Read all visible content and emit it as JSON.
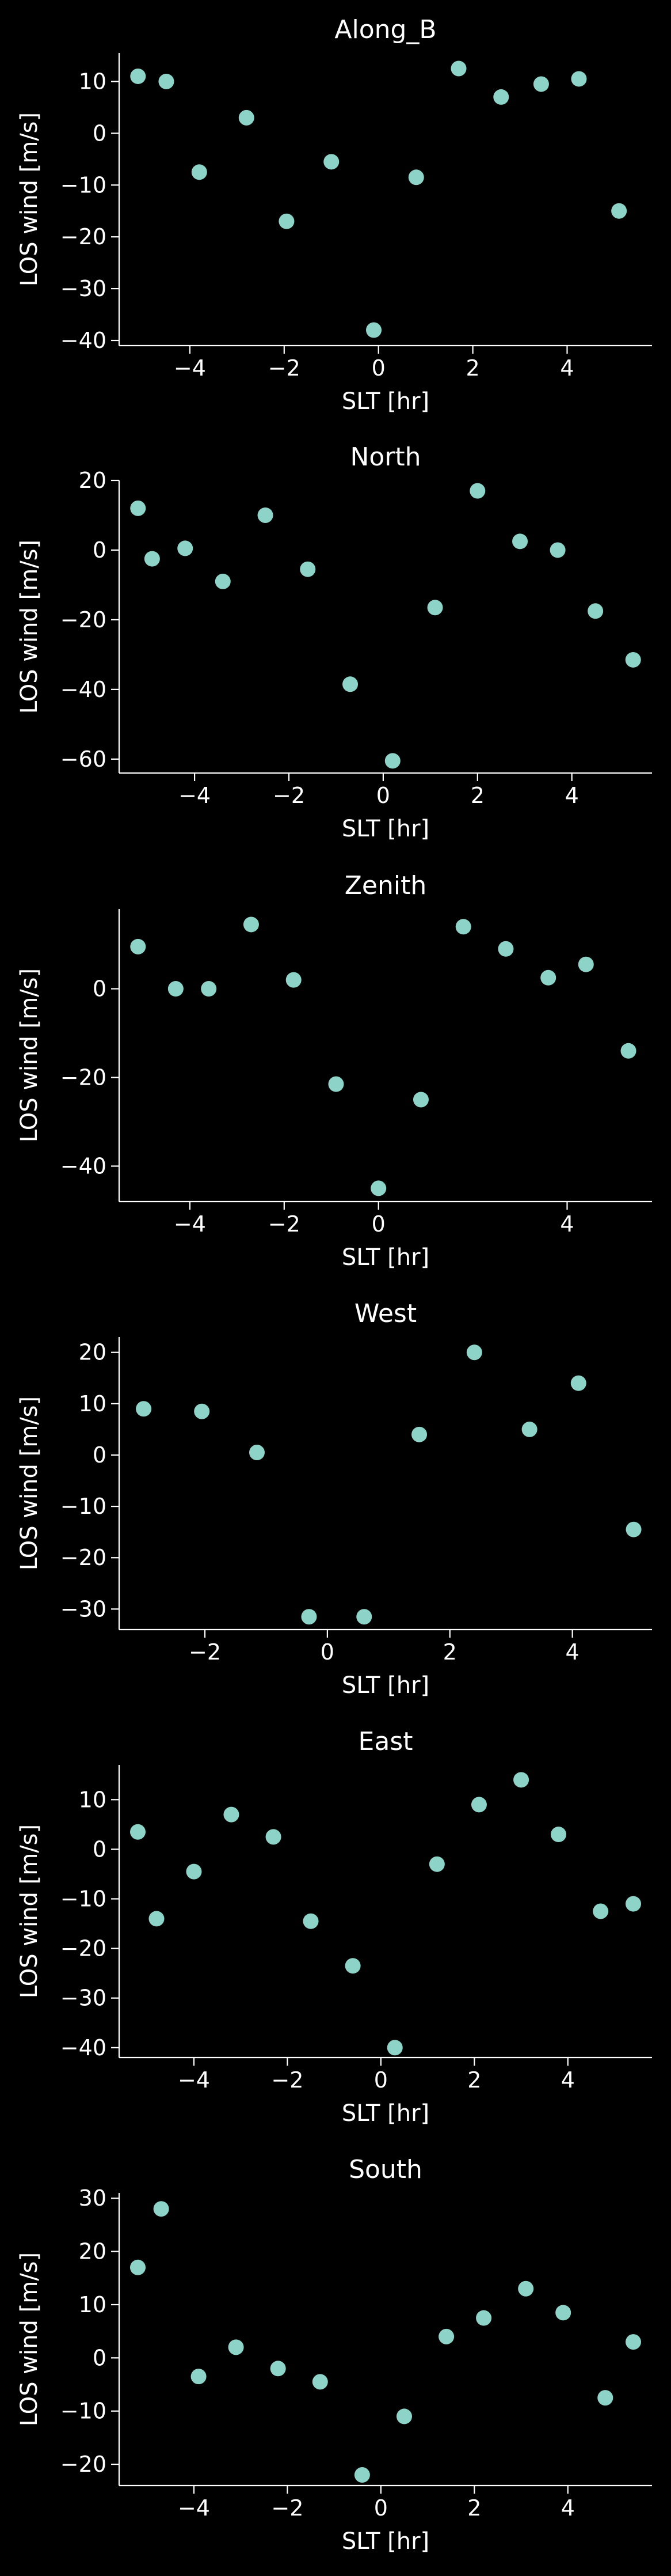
{
  "theme": {
    "background": "#000000",
    "axis_color": "#ffffff",
    "text_color": "#ffffff",
    "marker_color": "#8dd3c7"
  },
  "chart_data": [
    {
      "type": "scatter",
      "title": "Along_B",
      "xlabel": "SLT [hr]",
      "ylabel": "LOS wind [m/s]",
      "xlim": [
        -5.5,
        5.8
      ],
      "ylim": [
        -41,
        15.5
      ],
      "xticks": [
        -4,
        -2,
        0,
        2,
        4
      ],
      "yticks": [
        -40,
        -30,
        -20,
        -10,
        0,
        10
      ],
      "x": [
        -5.1,
        -4.5,
        -3.8,
        -2.8,
        -1.95,
        -1.0,
        -0.1,
        0.8,
        1.7,
        2.6,
        3.45,
        4.25,
        5.1
      ],
      "y": [
        11,
        10,
        -7.5,
        3,
        -17,
        -5.5,
        -38,
        -8.5,
        12.5,
        7,
        9.5,
        10.5,
        -15
      ]
    },
    {
      "type": "scatter",
      "title": "North",
      "xlabel": "SLT [hr]",
      "ylabel": "LOS wind [m/s]",
      "xlim": [
        -5.6,
        5.7
      ],
      "ylim": [
        -64,
        20
      ],
      "xticks": [
        -4,
        -2,
        0,
        2,
        4
      ],
      "yticks": [
        -60,
        -40,
        -20,
        0,
        20
      ],
      "x": [
        -5.2,
        -4.9,
        -4.2,
        -3.4,
        -2.5,
        -1.6,
        -0.7,
        0.2,
        1.1,
        2.0,
        2.9,
        3.7,
        4.5,
        5.3
      ],
      "y": [
        12,
        -2.5,
        0.5,
        -9,
        10,
        -5.5,
        -38.5,
        -60.5,
        -16.5,
        17,
        2.5,
        0,
        -17.5,
        -31.5
      ]
    },
    {
      "type": "scatter",
      "title": "Zenith",
      "xlabel": "SLT [hr]",
      "ylabel": "LOS wind [m/s]",
      "xlim": [
        -5.5,
        5.8
      ],
      "ylim": [
        -48,
        18
      ],
      "xticks": [
        -4,
        -2,
        0,
        4
      ],
      "yticks": [
        -40,
        -20,
        0
      ],
      "x": [
        -5.1,
        -4.3,
        -3.6,
        -2.7,
        -1.8,
        -0.9,
        0.0,
        0.9,
        1.8,
        2.7,
        3.6,
        4.4,
        5.3
      ],
      "y": [
        9.5,
        0,
        0,
        14.5,
        2,
        -21.5,
        -45,
        -25,
        14,
        9,
        2.5,
        5.5,
        -14
      ]
    },
    {
      "type": "scatter",
      "title": "West",
      "xlabel": "SLT [hr]",
      "ylabel": "LOS wind [m/s]",
      "xlim": [
        -3.4,
        5.3
      ],
      "ylim": [
        -34,
        23
      ],
      "xticks": [
        -2,
        0,
        2,
        4
      ],
      "yticks": [
        -30,
        -20,
        -10,
        0,
        10,
        20
      ],
      "x": [
        -3.0,
        -2.05,
        -1.15,
        -0.3,
        0.6,
        1.5,
        2.4,
        3.3,
        4.1,
        5.0
      ],
      "y": [
        9,
        8.5,
        0.5,
        -31.5,
        -31.5,
        4,
        20,
        5,
        14,
        -14.5
      ]
    },
    {
      "type": "scatter",
      "title": "East",
      "xlabel": "SLT [hr]",
      "ylabel": "LOS wind [m/s]",
      "xlim": [
        -5.6,
        5.8
      ],
      "ylim": [
        -42,
        17
      ],
      "xticks": [
        -4,
        -2,
        0,
        2,
        4
      ],
      "yticks": [
        -40,
        -30,
        -20,
        -10,
        0,
        10
      ],
      "x": [
        -5.2,
        -4.8,
        -4.0,
        -3.2,
        -2.3,
        -1.5,
        -0.6,
        0.3,
        1.2,
        2.1,
        3.0,
        3.8,
        4.7,
        5.4
      ],
      "y": [
        3.5,
        -14,
        -4.5,
        7,
        2.5,
        -14.5,
        -23.5,
        -40,
        -3,
        9,
        14,
        3,
        -12.5,
        -11
      ]
    },
    {
      "type": "scatter",
      "title": "South",
      "xlabel": "SLT [hr]",
      "ylabel": "LOS wind [m/s]",
      "xlim": [
        -5.6,
        5.8
      ],
      "ylim": [
        -24,
        31
      ],
      "xticks": [
        -4,
        -2,
        0,
        2,
        4
      ],
      "yticks": [
        -20,
        -10,
        0,
        10,
        20,
        30
      ],
      "x": [
        -5.2,
        -4.7,
        -3.9,
        -3.1,
        -2.2,
        -1.3,
        -0.4,
        0.5,
        1.4,
        2.2,
        3.1,
        3.9,
        4.8,
        5.4
      ],
      "y": [
        17,
        28,
        -3.5,
        2,
        -2,
        -4.5,
        -22,
        -11,
        4,
        7.5,
        13,
        8.5,
        -7.5,
        3
      ]
    }
  ]
}
